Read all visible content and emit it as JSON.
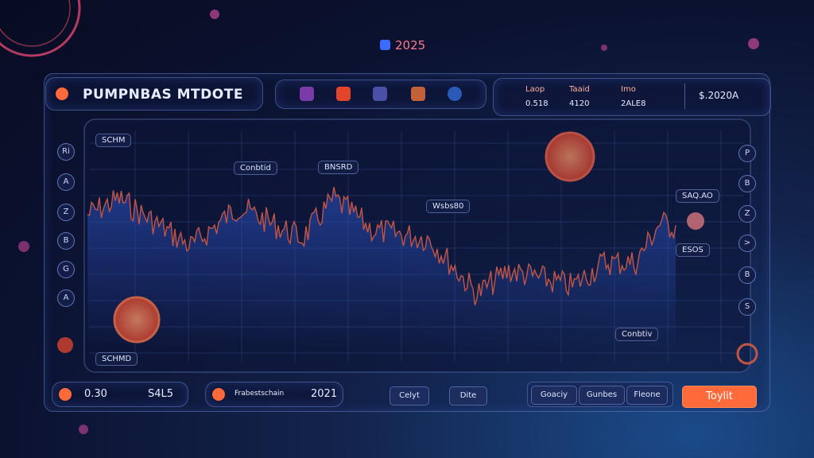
{
  "header": {
    "year": "2025",
    "title": "PUMPNBAS MTDOTE",
    "stats": [
      {
        "label": "Laop",
        "value": "0.518"
      },
      {
        "label": "Taaid",
        "value": "4120"
      },
      {
        "label": "Imo",
        "value": "2ALE8"
      }
    ],
    "balance": "$.2020A"
  },
  "left_icons": [
    "Ri",
    "A",
    "Z",
    "B",
    "G",
    "A"
  ],
  "right_icons": [
    "P",
    "B",
    "Z",
    ">",
    "B",
    "S"
  ],
  "chart": {
    "labels": [
      "SCHM",
      "Conbtid",
      "BNSRD",
      "Wsbs80",
      "SAQ.AO",
      "ESOS",
      "SCHMD",
      "Conbtiv"
    ]
  },
  "footer": {
    "price": "0.30",
    "change": "S4L5",
    "pair": "Frabestschain",
    "year": "2021",
    "tabs": [
      "Celyt",
      "Dite"
    ],
    "buttons": [
      "Goaciy",
      "Gunbes",
      "Fleone"
    ],
    "action": "Toylit"
  }
}
